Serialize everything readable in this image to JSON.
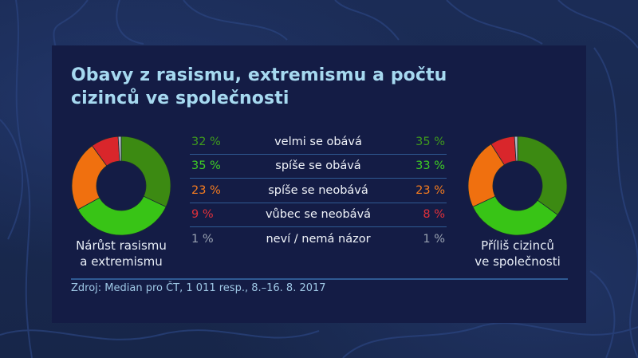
{
  "title": "Obavy z rasismu, extremismu a počtu cizinců ve společnosti",
  "title_lines": [
    "Obavy z rasismu, extremismu a počtu",
    "cizinců ve společnosti"
  ],
  "colors": {
    "velmi": "#3c8a12",
    "spise_obava": "#38c416",
    "spise_neobava": "#f0700f",
    "vubec": "#d9262b",
    "nevi": "#b0b7c3",
    "text_velmi": "#3f9b1d",
    "text_spise_obava": "#3fcd24",
    "text_spise_neobava": "#f57c1f",
    "text_vubec": "#e0303a",
    "text_nevi": "#9aa3b2"
  },
  "left_chart_label": [
    "Nárůst rasismu",
    "a extremismu"
  ],
  "right_chart_label": [
    "Příliš cizinců",
    "ve společnosti"
  ],
  "rows": [
    {
      "left": "32 %",
      "label": "velmi se obává",
      "right": "35 %",
      "key": "velmi"
    },
    {
      "left": "35 %",
      "label": "spíše se obává",
      "right": "33 %",
      "key": "spise_obava"
    },
    {
      "left": "23 %",
      "label": "spíše se neobává",
      "right": "23 %",
      "key": "spise_neobava"
    },
    {
      "left": "9 %",
      "label": "vůbec se neobává",
      "right": "8 %",
      "key": "vubec"
    },
    {
      "left": "1 %",
      "label": "neví / nemá názor",
      "right": "1 %",
      "key": "nevi"
    }
  ],
  "source": "Zdroj: Median pro ČT, 1 011 resp., 8.–16. 8. 2017",
  "chart_data": [
    {
      "type": "pie",
      "subtype": "donut",
      "title": "Nárůst rasismu a extremismu",
      "categories": [
        "velmi se obává",
        "spíše se obává",
        "spíše se neobává",
        "vůbec se neobává",
        "neví / nemá názor"
      ],
      "values": [
        32,
        35,
        23,
        9,
        1
      ],
      "unit": "%",
      "colors": [
        "#3c8a12",
        "#38c416",
        "#f0700f",
        "#d9262b",
        "#b0b7c3"
      ]
    },
    {
      "type": "pie",
      "subtype": "donut",
      "title": "Příliš cizinců ve společnosti",
      "categories": [
        "velmi se obává",
        "spíše se obává",
        "spíše se neobává",
        "vůbec se neobává",
        "neví / nemá názor"
      ],
      "values": [
        35,
        33,
        23,
        8,
        1
      ],
      "unit": "%",
      "colors": [
        "#3c8a12",
        "#38c416",
        "#f0700f",
        "#d9262b",
        "#b0b7c3"
      ]
    }
  ]
}
